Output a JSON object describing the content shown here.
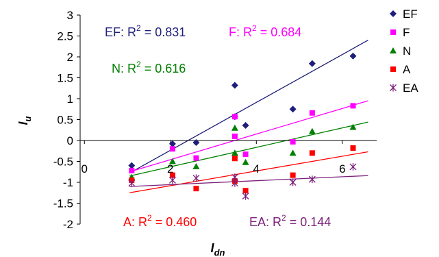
{
  "chart_data": {
    "type": "scatter",
    "xlabel_main": "I",
    "xlabel_sub": "dn",
    "ylabel_main": "I",
    "ylabel_sub": "u",
    "xlim": [
      -0.1,
      6.8
    ],
    "ylim": [
      -2,
      3
    ],
    "xticks": [
      0,
      2,
      4,
      6
    ],
    "yticks": [
      3,
      2.5,
      2,
      1.5,
      1,
      0.5,
      0,
      -0.5,
      -1,
      -1.5,
      -2
    ],
    "x_tick_labels": [
      "0",
      "2",
      "4",
      "6"
    ],
    "y_tick_labels": [
      "3",
      "2.5",
      "2",
      "1.5",
      "1",
      "0.5",
      "0",
      "-0.5",
      "-1",
      "-1.5",
      "-2"
    ],
    "series": [
      {
        "name": "EF",
        "color": "#1f1f7a",
        "marker": "diamond",
        "trend": [
          [
            1.05,
            -0.78
          ],
          [
            6.6,
            2.4
          ]
        ],
        "r2_prefix": "EF: R",
        "r2_suffix": " = 0.831",
        "points": [
          [
            1.1,
            -0.6
          ],
          [
            2.05,
            -0.08
          ],
          [
            2.6,
            -0.05
          ],
          [
            3.5,
            1.32
          ],
          [
            3.5,
            0.57
          ],
          [
            3.75,
            0.36
          ],
          [
            4.85,
            0.75
          ],
          [
            5.3,
            1.84
          ],
          [
            6.25,
            2.02
          ]
        ]
      },
      {
        "name": "F",
        "color": "#ff00ff",
        "marker": "square",
        "trend": [
          [
            1.05,
            -0.75
          ],
          [
            6.6,
            0.95
          ]
        ],
        "r2_prefix": "F: R",
        "r2_suffix": " = 0.684",
        "points": [
          [
            1.1,
            -0.72
          ],
          [
            2.05,
            -0.2
          ],
          [
            2.6,
            -0.42
          ],
          [
            3.5,
            0.57
          ],
          [
            3.5,
            0.1
          ],
          [
            3.75,
            -0.33
          ],
          [
            4.85,
            -0.03
          ],
          [
            5.3,
            0.66
          ],
          [
            6.25,
            0.83
          ]
        ]
      },
      {
        "name": "N",
        "color": "#008000",
        "marker": "triangle",
        "trend": [
          [
            1.05,
            -0.85
          ],
          [
            6.6,
            0.44
          ]
        ],
        "r2_prefix": "N: R",
        "r2_suffix": " = 0.616",
        "points": [
          [
            1.1,
            -0.88
          ],
          [
            2.05,
            -0.5
          ],
          [
            2.6,
            -0.62
          ],
          [
            3.5,
            0.3
          ],
          [
            3.5,
            -0.3
          ],
          [
            3.75,
            -0.52
          ],
          [
            4.85,
            -0.3
          ],
          [
            5.3,
            0.22
          ],
          [
            6.25,
            0.32
          ]
        ]
      },
      {
        "name": "A",
        "color": "#ff0000",
        "marker": "square",
        "trend": [
          [
            1.05,
            -1.25
          ],
          [
            6.6,
            -0.27
          ]
        ],
        "r2_prefix": "A: R",
        "r2_suffix": " = 0.460",
        "points": [
          [
            1.1,
            -0.95
          ],
          [
            2.05,
            -0.83
          ],
          [
            2.6,
            -1.15
          ],
          [
            3.5,
            -0.43
          ],
          [
            3.5,
            -0.97
          ],
          [
            3.75,
            -1.2
          ],
          [
            4.85,
            -0.83
          ],
          [
            5.3,
            -0.3
          ],
          [
            6.25,
            -0.18
          ]
        ]
      },
      {
        "name": "EA",
        "color": "#7a1f7a",
        "marker": "asterisk",
        "trend": [
          [
            1.05,
            -1.1
          ],
          [
            6.6,
            -0.84
          ]
        ],
        "r2_prefix": "EA: R",
        "r2_suffix": " = 0.144",
        "points": [
          [
            1.1,
            -1.02
          ],
          [
            2.05,
            -0.95
          ],
          [
            2.6,
            -0.9
          ],
          [
            3.5,
            -0.88
          ],
          [
            3.5,
            -1.02
          ],
          [
            3.75,
            -1.33
          ],
          [
            4.85,
            -1.0
          ],
          [
            5.3,
            -0.93
          ],
          [
            6.25,
            -0.63
          ]
        ]
      }
    ],
    "r2_superscript": "2"
  }
}
